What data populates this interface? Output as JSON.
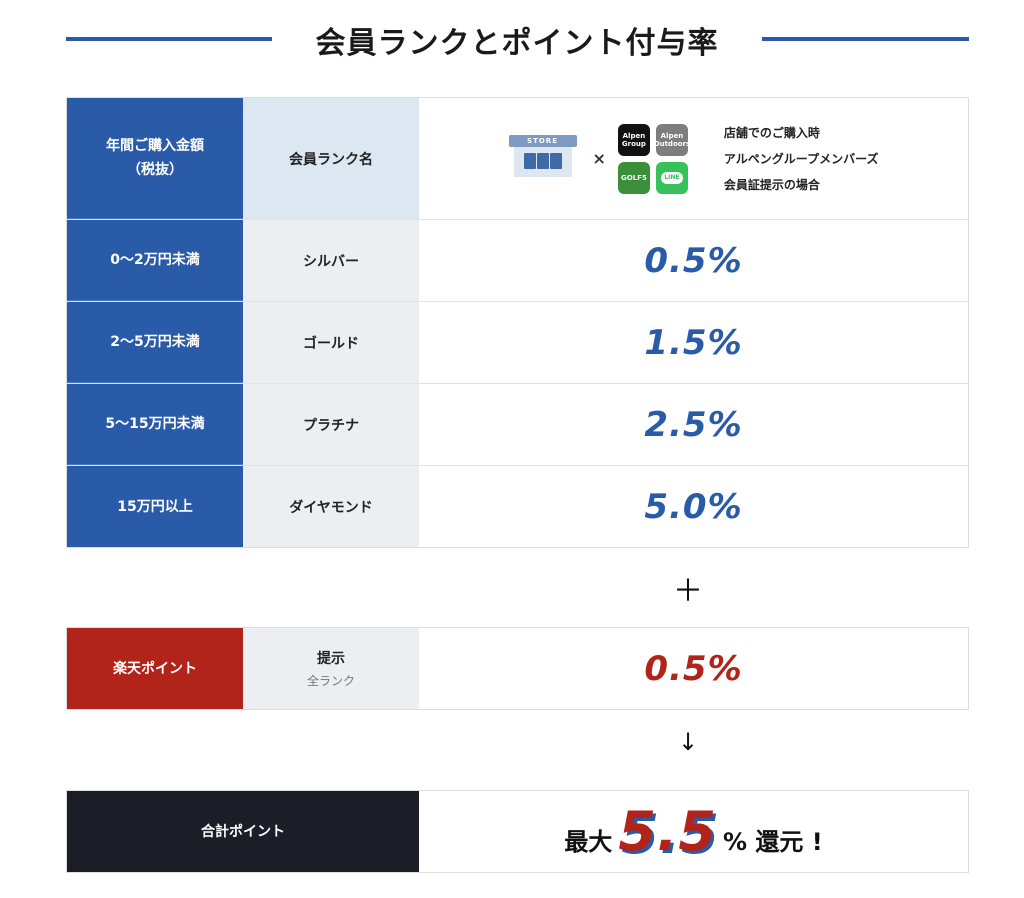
{
  "title": "会員ランクとポイント付与率",
  "table_header": {
    "col1_line1": "年間ご購入金額",
    "col1_line2": "（税抜）",
    "col2": "会員ランク名",
    "store_label": "STORE",
    "times": "×",
    "apps": [
      {
        "line1": "Alpen",
        "line2": "Group",
        "icon": "alpen-group-app-icon"
      },
      {
        "line1": "Alpen",
        "line2": "Outdoors",
        "icon": "alpen-outdoors-app-icon"
      },
      {
        "line1": "GOLF5",
        "line2": "",
        "icon": "golf5-app-icon"
      },
      {
        "line1": "LINE",
        "line2": "",
        "icon": "line-app-icon"
      }
    ],
    "note_lines": [
      "店舗でのご購入時",
      "アルペングループメンバーズ",
      "会員証提示の場合"
    ]
  },
  "ranks": [
    {
      "amount": "0〜2万円未満",
      "rank": "シルバー",
      "rate": "0.5%"
    },
    {
      "amount": "2〜5万円未満",
      "rank": "ゴールド",
      "rate": "1.5%"
    },
    {
      "amount": "5〜15万円未満",
      "rank": "プラチナ",
      "rate": "2.5%"
    },
    {
      "amount": "15万円以上",
      "rank": "ダイヤモンド",
      "rate": "5.0%"
    }
  ],
  "plus_symbol": "＋",
  "rakuten": {
    "label": "楽天ポイント",
    "condition": "提示",
    "condition_sub": "全ランク",
    "rate": "0.5%"
  },
  "arrow_symbol": "↓",
  "total": {
    "label": "合計ポイント",
    "prefix": "最大",
    "value": "5.5",
    "suffix": "% 還元 !"
  },
  "colors": {
    "blue": "#2a5ba8",
    "red": "#b22419",
    "dark": "#1b1e27"
  }
}
